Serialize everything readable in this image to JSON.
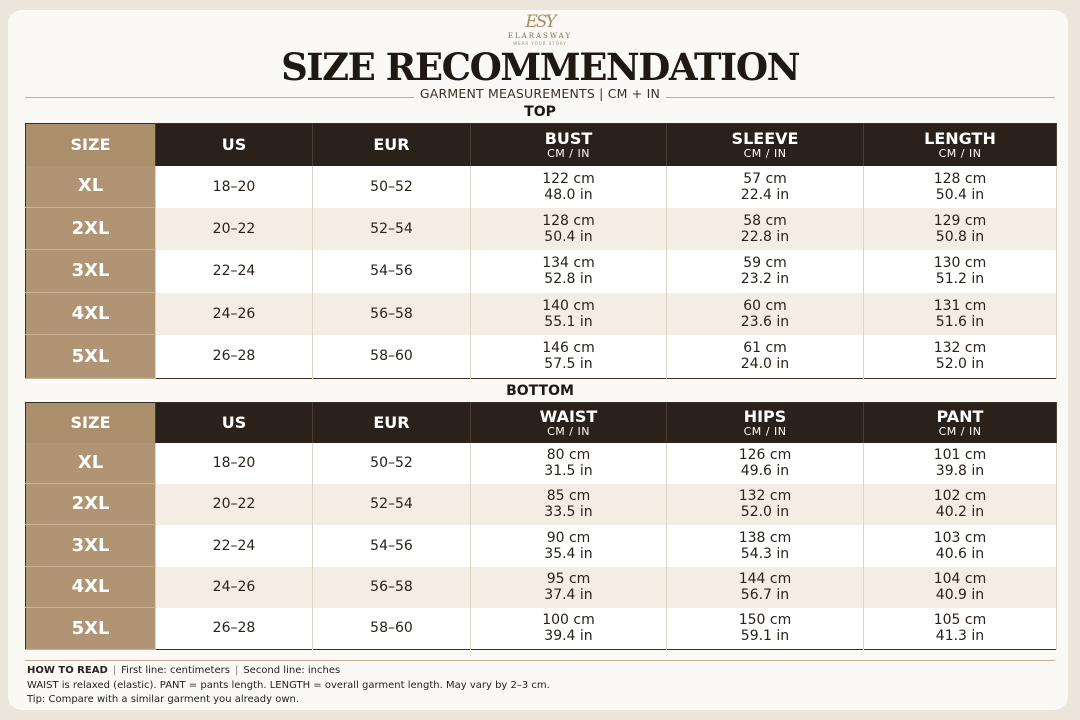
{
  "brand": {
    "mark": "ESY",
    "name": "ELARASWAY",
    "tagline": "WEAR YOUR STORY"
  },
  "title": "SIZE RECOMMENDATION",
  "subtitle": "GARMENT MEASUREMENTS | CM + IN",
  "top": {
    "label": "TOP",
    "headers": [
      {
        "label": "SIZE",
        "unit": ""
      },
      {
        "label": "US",
        "unit": ""
      },
      {
        "label": "EUR",
        "unit": ""
      },
      {
        "label": "BUST",
        "unit": "CM / IN"
      },
      {
        "label": "SLEEVE",
        "unit": "CM / IN"
      },
      {
        "label": "LENGTH",
        "unit": "CM / IN"
      }
    ],
    "rows": [
      {
        "size": "XL",
        "us": "18–20",
        "eur": "50–52",
        "m1_cm": "122 cm",
        "m1_in": "48.0 in",
        "m2_cm": "57 cm",
        "m2_in": "22.4 in",
        "m3_cm": "128 cm",
        "m3_in": "50.4 in"
      },
      {
        "size": "2XL",
        "us": "20–22",
        "eur": "52–54",
        "m1_cm": "128 cm",
        "m1_in": "50.4 in",
        "m2_cm": "58 cm",
        "m2_in": "22.8 in",
        "m3_cm": "129 cm",
        "m3_in": "50.8 in"
      },
      {
        "size": "3XL",
        "us": "22–24",
        "eur": "54–56",
        "m1_cm": "134 cm",
        "m1_in": "52.8 in",
        "m2_cm": "59 cm",
        "m2_in": "23.2 in",
        "m3_cm": "130 cm",
        "m3_in": "51.2 in"
      },
      {
        "size": "4XL",
        "us": "24–26",
        "eur": "56–58",
        "m1_cm": "140 cm",
        "m1_in": "55.1 in",
        "m2_cm": "60 cm",
        "m2_in": "23.6 in",
        "m3_cm": "131 cm",
        "m3_in": "51.6 in"
      },
      {
        "size": "5XL",
        "us": "26–28",
        "eur": "58–60",
        "m1_cm": "146 cm",
        "m1_in": "57.5 in",
        "m2_cm": "61 cm",
        "m2_in": "24.0 in",
        "m3_cm": "132 cm",
        "m3_in": "52.0 in"
      }
    ]
  },
  "bottom": {
    "label": "BOTTOM",
    "headers": [
      {
        "label": "SIZE",
        "unit": ""
      },
      {
        "label": "US",
        "unit": ""
      },
      {
        "label": "EUR",
        "unit": ""
      },
      {
        "label": "WAIST",
        "unit": "CM / IN"
      },
      {
        "label": "HIPS",
        "unit": "CM / IN"
      },
      {
        "label": "PANT",
        "unit": "CM / IN"
      }
    ],
    "rows": [
      {
        "size": "XL",
        "us": "18–20",
        "eur": "50–52",
        "m1_cm": "80 cm",
        "m1_in": "31.5 in",
        "m2_cm": "126 cm",
        "m2_in": "49.6 in",
        "m3_cm": "101 cm",
        "m3_in": "39.8 in"
      },
      {
        "size": "2XL",
        "us": "20–22",
        "eur": "52–54",
        "m1_cm": "85 cm",
        "m1_in": "33.5 in",
        "m2_cm": "132 cm",
        "m2_in": "52.0 in",
        "m3_cm": "102 cm",
        "m3_in": "40.2 in"
      },
      {
        "size": "3XL",
        "us": "22–24",
        "eur": "54–56",
        "m1_cm": "90 cm",
        "m1_in": "35.4 in",
        "m2_cm": "138 cm",
        "m2_in": "54.3 in",
        "m3_cm": "103 cm",
        "m3_in": "40.6 in"
      },
      {
        "size": "4XL",
        "us": "24–26",
        "eur": "56–58",
        "m1_cm": "95 cm",
        "m1_in": "37.4 in",
        "m2_cm": "144 cm",
        "m2_in": "56.7 in",
        "m3_cm": "104 cm",
        "m3_in": "40.9 in"
      },
      {
        "size": "5XL",
        "us": "26–28",
        "eur": "58–60",
        "m1_cm": "100 cm",
        "m1_in": "39.4 in",
        "m2_cm": "150 cm",
        "m2_in": "59.1 in",
        "m3_cm": "105 cm",
        "m3_in": "41.3 in"
      }
    ]
  },
  "footer": {
    "how_label": "HOW TO READ",
    "line1_a": "First line: centimeters",
    "line1_b": "Second line: inches",
    "line2": "WAIST is relaxed (elastic). PANT = pants length. LENGTH = overall garment length. May vary by 2–3 cm.",
    "line3": "Tip: Compare with a similar garment you already own."
  },
  "colors": {
    "header_bg": "#2b211b",
    "size_col": "#b09474",
    "alt_row": "#f3ede4",
    "background": "#fbf9f5"
  }
}
